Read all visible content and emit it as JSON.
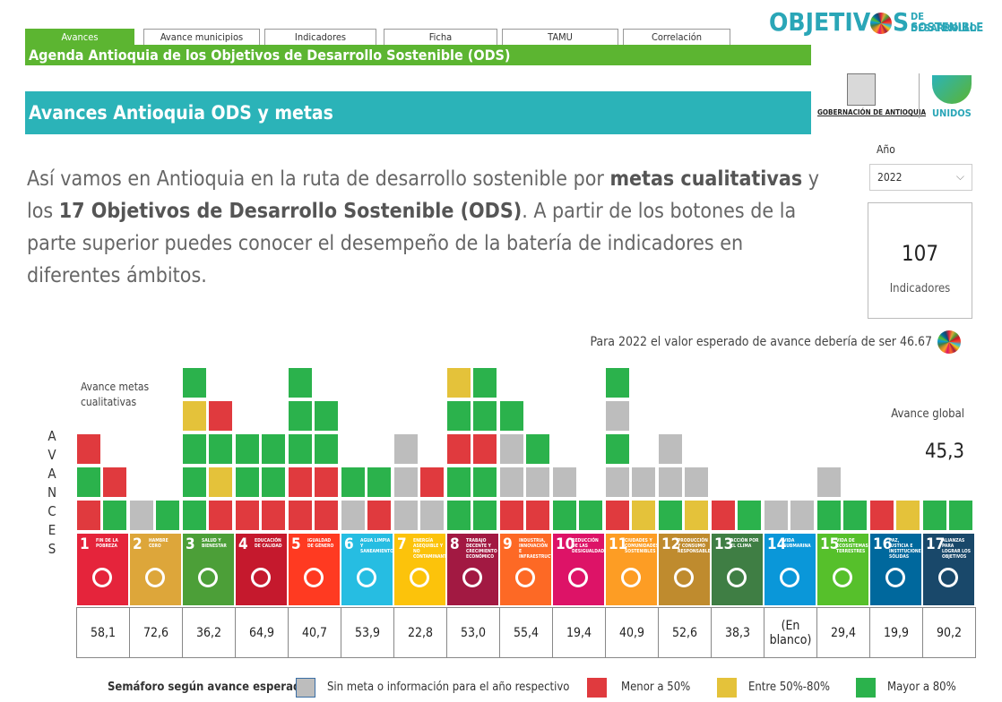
{
  "tabs": [
    "Avances",
    "Avance municipios",
    "Indicadores",
    "Ficha",
    "TAMU",
    "Correlación"
  ],
  "header": {
    "agenda": "Agenda Antioquia de los Objetivos de Desarrollo Sostenible (ODS)",
    "title": "Avances Antioquia ODS y metas"
  },
  "logo": {
    "word_start": "OBJETIV",
    "word_end": "S",
    "line1": "DE DESARROLLO",
    "line2": "SOSTENIBLE",
    "government": "GOBERNACIÓN DE ANTIOQUIA",
    "unidos": "UNIDOS"
  },
  "filter": {
    "label": "Año",
    "value": "2022"
  },
  "intro": [
    {
      "text": "Así vamos en Antioquia en la ruta de desarrollo sostenible por ",
      "bold": false
    },
    {
      "text": "metas cualitativas",
      "bold": true
    },
    {
      "text": " y los ",
      "bold": false
    },
    {
      "text": "17 Objetivos de Desarrollo Sostenible (ODS)",
      "bold": true
    },
    {
      "text": ". A partir de los botones de la parte superior puedes conocer el desempeño de la batería de indicadores en diferentes ámbitos.",
      "bold": false
    }
  ],
  "kpi": {
    "value": 107,
    "label": "Indicadores"
  },
  "expected": "Para 2022 el valor esperado de avance debería de ser 46.67",
  "vertical_label": "AVANCES",
  "squares_title": "Avance metas cualitativas",
  "global": {
    "label": "Avance global",
    "value": "45,3"
  },
  "goals": [
    {
      "number": "1",
      "label": "FIN DE LA POBREZA",
      "color": "#e5243b",
      "value": "58,1",
      "left": [
        "#e03a3e",
        "#2bb24c",
        "#e03a3e"
      ],
      "right": [
        "#2bb24c",
        "#e03a3e"
      ]
    },
    {
      "number": "2",
      "label": "HAMBRE CERO",
      "color": "#dda63a",
      "value": "72,6",
      "left": [
        "#bdbdbd"
      ],
      "right": [
        "#2bb24c"
      ]
    },
    {
      "number": "3",
      "label": "SALUD Y BIENESTAR",
      "color": "#4c9f38",
      "value": "36,2",
      "left": [
        "#2bb24c",
        "#2bb24c",
        "#2bb24c",
        "#e4c23a",
        "#2bb24c"
      ],
      "right": [
        "#e03a3e",
        "#e4c23a",
        "#2bb24c",
        "#e03a3e"
      ]
    },
    {
      "number": "4",
      "label": "EDUCACIÓN DE CALIDAD",
      "color": "#c5192d",
      "value": "64,9",
      "left": [
        "#e03a3e",
        "#2bb24c",
        "#2bb24c"
      ],
      "right": [
        "#e03a3e",
        "#2bb24c",
        "#2bb24c"
      ]
    },
    {
      "number": "5",
      "label": "IGUALDAD DE GÉNERO",
      "color": "#ff3a21",
      "value": "40,7",
      "left": [
        "#e03a3e",
        "#e03a3e",
        "#2bb24c",
        "#2bb24c",
        "#2bb24c"
      ],
      "right": [
        "#e03a3e",
        "#e03a3e",
        "#2bb24c",
        "#2bb24c"
      ]
    },
    {
      "number": "6",
      "label": "AGUA LIMPIA Y SANEAMIENTO",
      "color": "#26bde2",
      "value": "53,9",
      "left": [
        "#bdbdbd",
        "#2bb24c"
      ],
      "right": [
        "#e03a3e",
        "#2bb24c"
      ]
    },
    {
      "number": "7",
      "label": "ENERGÍA ASEQUIBLE Y NO CONTAMINANTE",
      "color": "#fcc30b",
      "value": "22,8",
      "left": [
        "#bdbdbd",
        "#bdbdbd",
        "#bdbdbd"
      ],
      "right": [
        "#bdbdbd",
        "#e03a3e"
      ]
    },
    {
      "number": "8",
      "label": "TRABAJO DECENTE Y CRECIMIENTO ECONÓMICO",
      "color": "#a21942",
      "value": "53,0",
      "left": [
        "#2bb24c",
        "#2bb24c",
        "#e03a3e",
        "#2bb24c",
        "#e4c23a"
      ],
      "right": [
        "#2bb24c",
        "#2bb24c",
        "#e03a3e",
        "#2bb24c",
        "#2bb24c"
      ]
    },
    {
      "number": "9",
      "label": "INDUSTRIA, INNOVACIÓN E INFRAESTRUCTURA",
      "color": "#fd6925",
      "value": "55,4",
      "left": [
        "#e03a3e",
        "#bdbdbd",
        "#bdbdbd",
        "#2bb24c"
      ],
      "right": [
        "#e03a3e",
        "#bdbdbd",
        "#2bb24c"
      ]
    },
    {
      "number": "10",
      "label": "REDUCCIÓN DE LAS DESIGUALDADES",
      "color": "#dd1367",
      "value": "19,4",
      "left": [
        "#2bb24c",
        "#bdbdbd"
      ],
      "right": [
        "#2bb24c"
      ]
    },
    {
      "number": "11",
      "label": "CIUDADES Y COMUNIDADES SOSTENIBLES",
      "color": "#fd9d24",
      "value": "40,9",
      "left": [
        "#e03a3e",
        "#bdbdbd",
        "#2bb24c",
        "#bdbdbd",
        "#2bb24c"
      ],
      "right": [
        "#e4c23a",
        "#bdbdbd"
      ]
    },
    {
      "number": "12",
      "label": "PRODUCCIÓN Y CONSUMO RESPONSABLES",
      "color": "#bf8b2e",
      "value": "52,6",
      "left": [
        "#2bb24c",
        "#bdbdbd",
        "#bdbdbd"
      ],
      "right": [
        "#e4c23a",
        "#bdbdbd"
      ]
    },
    {
      "number": "13",
      "label": "ACCIÓN POR EL CLIMA",
      "color": "#3f7e44",
      "value": "38,3",
      "left": [
        "#e03a3e"
      ],
      "right": [
        "#2bb24c"
      ]
    },
    {
      "number": "14",
      "label": "VIDA SUBMARINA",
      "color": "#0a97d9",
      "value": "(En blanco)",
      "left": [
        "#bdbdbd"
      ],
      "right": [
        "#bdbdbd"
      ]
    },
    {
      "number": "15",
      "label": "VIDA DE ECOSISTEMAS TERRESTRES",
      "color": "#56c02b",
      "value": "29,4",
      "left": [
        "#2bb24c",
        "#bdbdbd"
      ],
      "right": [
        "#2bb24c"
      ]
    },
    {
      "number": "16",
      "label": "PAZ, JUSTICIA E INSTITUCIONES SÓLIDAS",
      "color": "#00689d",
      "value": "19,9",
      "left": [
        "#e03a3e"
      ],
      "right": [
        "#e4c23a"
      ]
    },
    {
      "number": "17",
      "label": "ALIANZAS PARA LOGRAR LOS OBJETIVOS",
      "color": "#19486a",
      "value": "90,2",
      "left": [
        "#2bb24c"
      ],
      "right": [
        "#2bb24c"
      ]
    }
  ],
  "legend": {
    "title": "Semáforo según avance esperado:",
    "items": [
      {
        "label": "Sin meta o información para el año respectivo",
        "color": "#bdbdbd"
      },
      {
        "label": "Menor a 50%",
        "color": "#e03a3e"
      },
      {
        "label": "Entre 50%-80%",
        "color": "#e4c23a"
      },
      {
        "label": "Mayor a 80%",
        "color": "#2bb24c"
      }
    ]
  }
}
